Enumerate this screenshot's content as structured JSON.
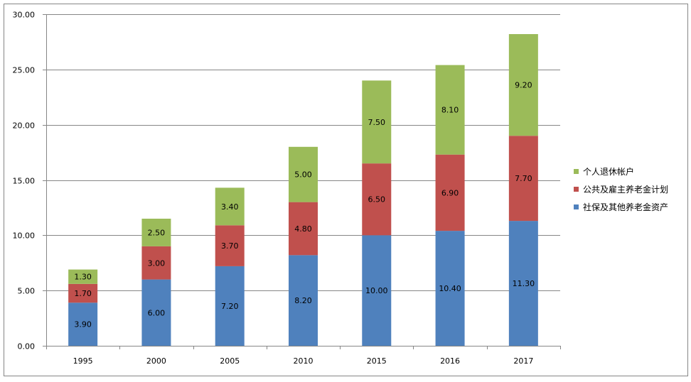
{
  "chart_data": {
    "type": "bar",
    "stacked": true,
    "categories": [
      "1995",
      "2000",
      "2005",
      "2010",
      "2015",
      "2016",
      "2017"
    ],
    "series": [
      {
        "name": "社保及其他养老金资产",
        "color": "#4f81bd",
        "values": [
          3.9,
          6.0,
          7.2,
          8.2,
          10.0,
          10.4,
          11.3
        ],
        "labels": [
          "3.90",
          "6.00",
          "7.20",
          "8.20",
          "10.00",
          "10.40",
          "11.30"
        ]
      },
      {
        "name": "公共及雇主养老金计划",
        "color": "#c0504d",
        "values": [
          1.7,
          3.0,
          3.7,
          4.8,
          6.5,
          6.9,
          7.7
        ],
        "labels": [
          "1.70",
          "3.00",
          "3.70",
          "4.80",
          "6.50",
          "6.90",
          "7.70"
        ]
      },
      {
        "name": "个人退休帐户",
        "color": "#9bbb59",
        "values": [
          1.3,
          2.5,
          3.4,
          5.0,
          7.5,
          8.1,
          9.2
        ],
        "labels": [
          "1.30",
          "2.50",
          "3.40",
          "5.00",
          "7.50",
          "8.10",
          "9.20"
        ]
      }
    ],
    "legend_order": [
      "个人退休帐户",
      "公共及雇主养老金计划",
      "社保及其他养老金资产"
    ],
    "ylim": [
      0,
      30
    ],
    "yticks": [
      "0.00",
      "5.00",
      "10.00",
      "15.00",
      "20.00",
      "25.00",
      "30.00"
    ],
    "ytick_values": [
      0,
      5,
      10,
      15,
      20,
      25,
      30
    ],
    "grid": true,
    "legend_position": "right",
    "title": "",
    "xlabel": "",
    "ylabel": ""
  }
}
